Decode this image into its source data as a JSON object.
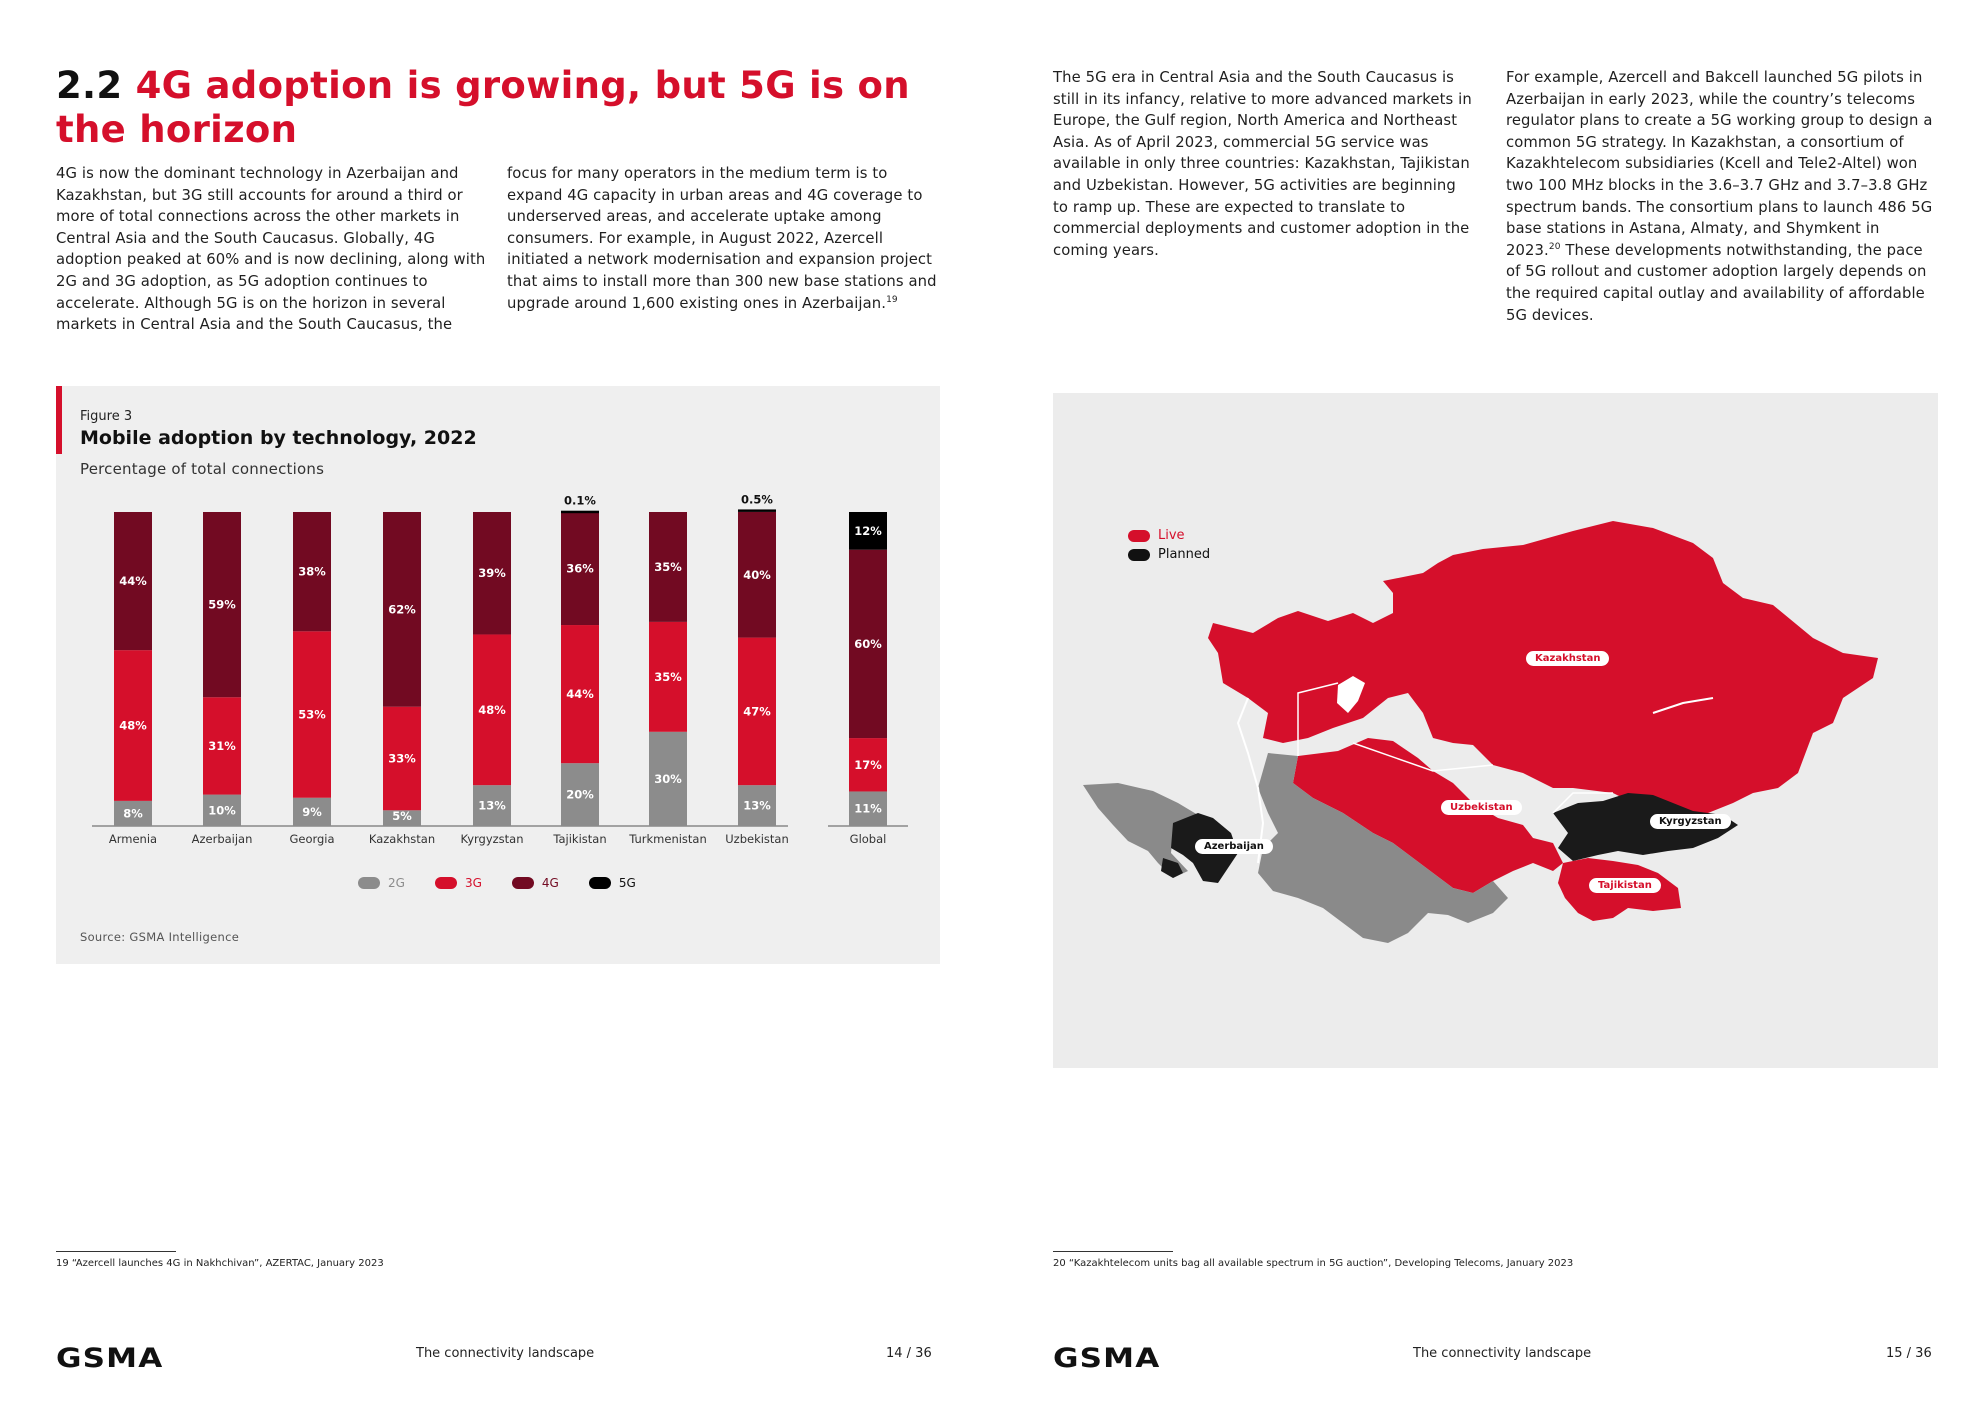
{
  "left_page": {
    "heading_number": "2.2",
    "heading_text": "4G adoption is growing, but 5G is on the horizon",
    "col1": "4G is now the dominant technology in Azerbaijan and Kazakhstan, but 3G still accounts for around a third or more of total connections across the other markets in Central Asia and the South Caucasus. Globally, 4G adoption peaked at 60% and is now declining, along with 2G and 3G adoption, as 5G adoption continues to accelerate. Although 5G is on the horizon in several markets in Central Asia and the South Caucasus, the",
    "col2": "focus for many operators in the medium term is to expand 4G capacity in urban areas and 4G coverage to underserved areas, and accelerate uptake among consumers. For example, in August 2022, Azercell initiated a network modernisation and expansion project that aims to install more than 300 new base stations and upgrade around 1,600 existing ones in Azerbaijan.",
    "col2_footnote_ref": "19",
    "footnote": "19  “Azercell launches 4G in Nakhchivan”, AZERTAC, January 2023",
    "footer_title": "The connectivity landscape",
    "page_number": "14 / 36"
  },
  "figure": {
    "label": "Figure 3",
    "title": "Mobile adoption by technology, 2022",
    "subtitle": "Percentage of total connections",
    "source": "Source: GSMA Intelligence"
  },
  "chart_data": {
    "type": "bar",
    "stacked": true,
    "categories": [
      "Armenia",
      "Azerbaijan",
      "Georgia",
      "Kazakhstan",
      "Kyrgyzstan",
      "Tajikistan",
      "Turkmenistan",
      "Uzbekistan",
      "Global"
    ],
    "series": [
      {
        "name": "2G",
        "values": [
          8,
          10,
          9,
          5,
          13,
          20,
          30,
          13,
          11
        ],
        "color": "#8c8c8c"
      },
      {
        "name": "3G",
        "values": [
          48,
          31,
          53,
          33,
          48,
          44,
          35,
          47,
          17
        ],
        "color": "#d50f2b"
      },
      {
        "name": "4G",
        "values": [
          44,
          59,
          38,
          62,
          39,
          36,
          35,
          40,
          60
        ],
        "color": "#720a22"
      },
      {
        "name": "5G",
        "values": [
          0,
          0,
          0,
          0,
          0,
          0.1,
          0,
          0.5,
          12
        ],
        "color": "#000000"
      }
    ],
    "data_labels": [
      [
        "8%",
        "10%",
        "9%",
        "5%",
        "13%",
        "20%",
        "30%",
        "13%",
        "11%"
      ],
      [
        "48%",
        "31%",
        "53%",
        "33%",
        "48%",
        "44%",
        "35%",
        "47%",
        "17%"
      ],
      [
        "44%",
        "59%",
        "38%",
        "62%",
        "39%",
        "36%",
        "35%",
        "40%",
        "60%"
      ],
      [
        "",
        "",
        "",
        "",
        "",
        "0.1%",
        "",
        "0.5%",
        "12%"
      ]
    ],
    "ylim": [
      0,
      100
    ],
    "grid": false,
    "legend_position": "bottom"
  },
  "legend": {
    "items": [
      {
        "label": "2G",
        "color": "#8c8c8c",
        "text_color": "#8c8c8c"
      },
      {
        "label": "3G",
        "color": "#d50f2b",
        "text_color": "#d50f2b"
      },
      {
        "label": "4G",
        "color": "#720a22",
        "text_color": "#720a22"
      },
      {
        "label": "5G",
        "color": "#000000",
        "text_color": "#111111"
      }
    ]
  },
  "right_page": {
    "col1": "The 5G era in Central Asia and the South Caucasus is still in its infancy, relative to more advanced markets in Europe, the Gulf region, North America and Northeast Asia. As of April 2023, commercial 5G service was available in only three countries: Kazakhstan, Tajikistan and Uzbekistan. However, 5G activities are beginning to ramp up. These are expected to translate to commercial deployments and customer adoption in the coming years.",
    "col2": "For example, Azercell and Bakcell launched 5G pilots in Azerbaijan in early 2023, while the country’s telecoms regulator plans to create a 5G working group to design a common 5G strategy. In Kazakhstan, a consortium of Kazakhtelecom subsidiaries (Kcell and Tele2-Altel) won two 100 MHz blocks in the 3.6–3.7 GHz and 3.7–3.8 GHz spectrum bands. The consortium plans to launch 486 5G base stations in Astana, Almaty, and Shymkent in 2023.",
    "col2_footnote_ref": "20",
    "col2_after": "These developments notwithstanding, the pace of 5G rollout and customer adoption largely depends on the required capital outlay and availability of affordable 5G devices.",
    "footnote": "20  “Kazakhtelecom units bag all available spectrum in 5G auction”, Developing Telecoms, January 2023",
    "footer_title": "The connectivity landscape",
    "page_number": "15 / 36"
  },
  "map": {
    "legend": [
      {
        "label": "Live",
        "color": "#d50f2b",
        "text_color": "#d50f2b"
      },
      {
        "label": "Planned",
        "color": "#111111",
        "text_color": "#111111"
      }
    ],
    "labels": {
      "kazakhstan": "Kazakhstan",
      "uzbekistan": "Uzbekistan",
      "azerbaijan": "Azerbaijan",
      "kyrgyzstan": "Kyrgyzstan",
      "tajikistan": "Tajikistan"
    },
    "colors": {
      "live": "#d50f2b",
      "planned": "#1a1a1a",
      "none": "#8a8a8a",
      "bg": "#ececec"
    }
  },
  "brand": {
    "logo": "GSMA",
    "accent": "#d50f2b"
  }
}
